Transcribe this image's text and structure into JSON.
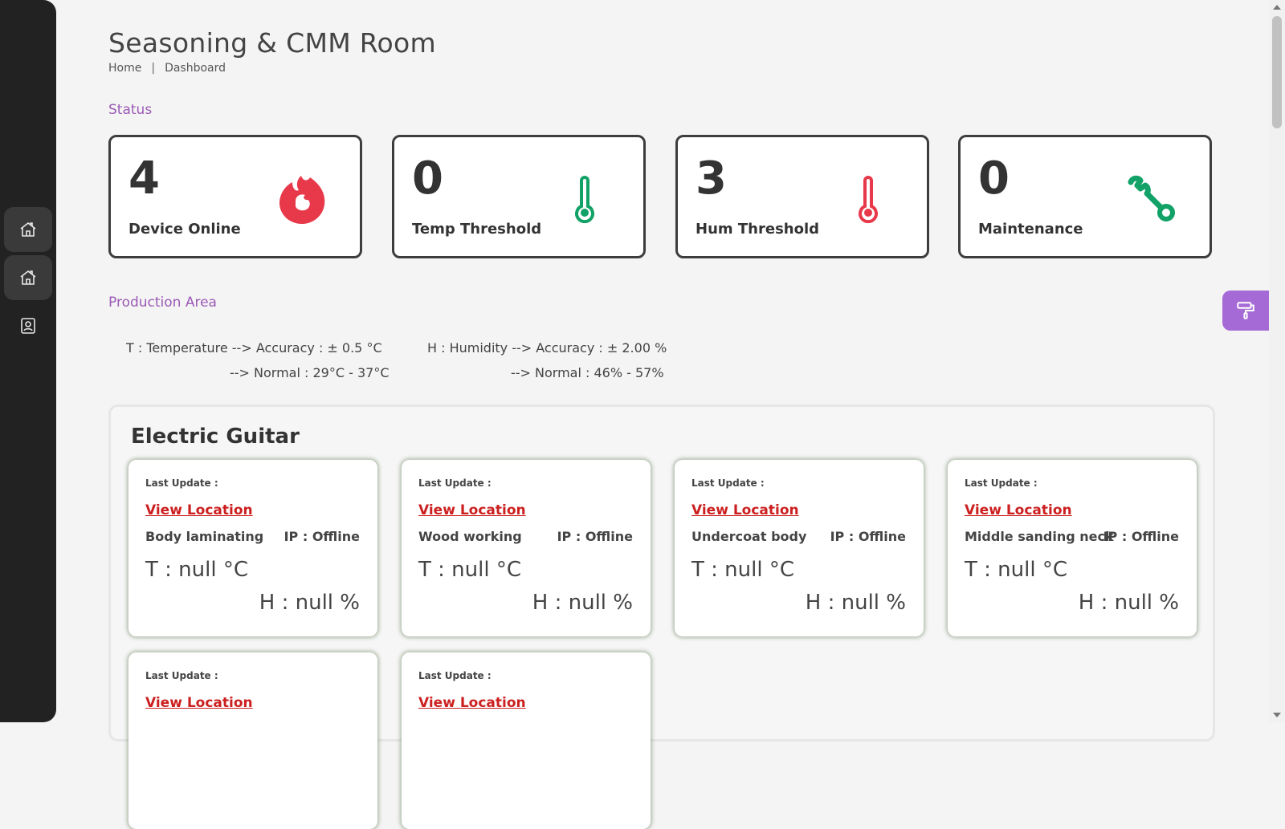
{
  "page": {
    "title": "Seasoning & CMM Room",
    "breadcrumb": {
      "home": "Home",
      "separator": "|",
      "current": "Dashboard"
    }
  },
  "sidebar": {
    "items": [
      {
        "icon": "home-icon",
        "active": true
      },
      {
        "icon": "home-icon",
        "active": true
      },
      {
        "icon": "user-badge-icon",
        "active": false
      }
    ]
  },
  "status": {
    "label": "Status",
    "cards": [
      {
        "value": "4",
        "label": "Device Online",
        "icon": "fire-icon",
        "color": "#e8394b"
      },
      {
        "value": "0",
        "label": "Temp Threshold",
        "icon": "thermometer-icon",
        "color": "#12a267"
      },
      {
        "value": "3",
        "label": "Hum Threshold",
        "icon": "thermometer-icon",
        "color": "#e8394b"
      },
      {
        "value": "0",
        "label": "Maintenance",
        "icon": "wrench-icon",
        "color": "#12a267"
      }
    ]
  },
  "production": {
    "label": "Production Area",
    "legend": {
      "temp_line1": "T : Temperature --> Accuracy : ± 0.5 °C",
      "temp_line2": "--> Normal : 29°C - 37°C",
      "hum_line1": "H : Humidity --> Accuracy : ± 2.00 %",
      "hum_line2": "--> Normal : 46% - 57%"
    }
  },
  "panel": {
    "title": "Electric Guitar",
    "devices": [
      {
        "last_update": "Last Update :",
        "link": "View Location",
        "name": "Body laminating",
        "ip": "IP : Offline",
        "temp": "T : null °C",
        "hum": "H : null %"
      },
      {
        "last_update": "Last Update :",
        "link": "View Location",
        "name": "Wood working",
        "ip": "IP : Offline",
        "temp": "T : null °C",
        "hum": "H : null %"
      },
      {
        "last_update": "Last Update :",
        "link": "View Location",
        "name": "Undercoat body",
        "ip": "IP : Offline",
        "temp": "T : null °C",
        "hum": "H : null %"
      },
      {
        "last_update": "Last Update :",
        "link": "View Location",
        "name": "Middle sanding neck",
        "ip": "IP : Offline",
        "temp": "T : null °C",
        "hum": "H : null %"
      },
      {
        "last_update": "Last Update :",
        "link": "View Location",
        "name": "",
        "ip": "",
        "temp": "",
        "hum": ""
      },
      {
        "last_update": "Last Update :",
        "link": "View Location",
        "name": "",
        "ip": "",
        "temp": "",
        "hum": ""
      }
    ]
  },
  "colors": {
    "accent_purple": "#9b59b6",
    "sidebar_bg": "#222222",
    "link_red": "#cc1f1f",
    "theme_button": "#a66ad6"
  }
}
